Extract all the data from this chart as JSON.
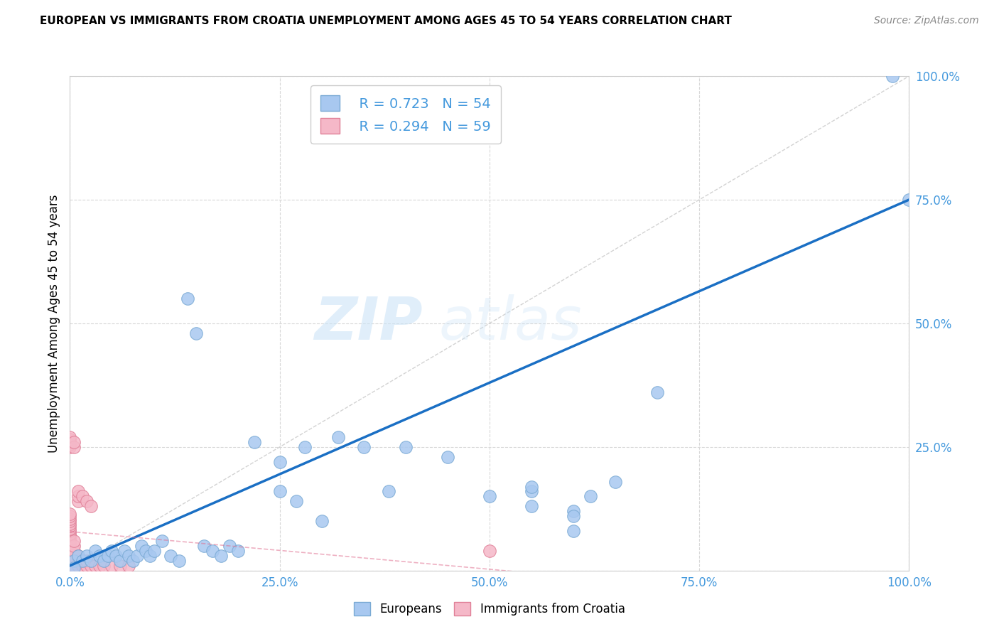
{
  "title": "EUROPEAN VS IMMIGRANTS FROM CROATIA UNEMPLOYMENT AMONG AGES 45 TO 54 YEARS CORRELATION CHART",
  "source": "Source: ZipAtlas.com",
  "ylabel": "Unemployment Among Ages 45 to 54 years",
  "xlim": [
    0,
    1.0
  ],
  "ylim": [
    0,
    1.0
  ],
  "xticks": [
    0.0,
    0.25,
    0.5,
    0.75,
    1.0
  ],
  "yticks": [
    0.0,
    0.25,
    0.5,
    0.75,
    1.0
  ],
  "xtick_labels": [
    "0.0%",
    "25.0%",
    "50.0%",
    "75.0%",
    "100.0%"
  ],
  "ytick_labels": [
    "0.0%",
    "25.0%",
    "50.0%",
    "75.0%",
    "100.0%"
  ],
  "european_color": "#a8c8f0",
  "european_edge": "#7aaad4",
  "immigrant_color": "#f5b8c8",
  "immigrant_edge": "#e08098",
  "regression_blue_color": "#1a6fc4",
  "regression_pink_color": "#e07090",
  "diagonal_color": "#c8c8c8",
  "watermark_zip": "ZIP",
  "watermark_atlas": "atlas",
  "legend_R_european": "R = 0.723",
  "legend_N_european": "N = 54",
  "legend_R_immigrant": "R = 0.294",
  "legend_N_immigrant": "N = 59",
  "european_x": [
    0.005,
    0.01,
    0.015,
    0.02,
    0.025,
    0.03,
    0.035,
    0.04,
    0.045,
    0.05,
    0.055,
    0.06,
    0.065,
    0.07,
    0.075,
    0.08,
    0.085,
    0.09,
    0.095,
    0.1,
    0.11,
    0.12,
    0.13,
    0.14,
    0.15,
    0.16,
    0.17,
    0.18,
    0.19,
    0.2,
    0.22,
    0.25,
    0.28,
    0.3,
    0.32,
    0.35,
    0.38,
    0.4,
    0.45,
    0.5,
    0.55,
    0.6,
    0.65,
    0.7,
    1.0,
    0.25,
    0.27,
    0.55,
    0.6,
    0.62,
    0.55,
    0.6,
    0.98,
    0.005
  ],
  "european_y": [
    0.02,
    0.03,
    0.02,
    0.03,
    0.02,
    0.04,
    0.03,
    0.02,
    0.03,
    0.04,
    0.03,
    0.02,
    0.04,
    0.03,
    0.02,
    0.03,
    0.05,
    0.04,
    0.03,
    0.04,
    0.06,
    0.03,
    0.02,
    0.55,
    0.48,
    0.05,
    0.04,
    0.03,
    0.05,
    0.04,
    0.26,
    0.22,
    0.25,
    0.1,
    0.27,
    0.25,
    0.16,
    0.25,
    0.23,
    0.15,
    0.16,
    0.12,
    0.18,
    0.36,
    0.75,
    0.16,
    0.14,
    0.17,
    0.08,
    0.15,
    0.13,
    0.11,
    1.0,
    0.005
  ],
  "immigrant_x": [
    0.0,
    0.0,
    0.0,
    0.0,
    0.0,
    0.0,
    0.0,
    0.0,
    0.0,
    0.0,
    0.0,
    0.0,
    0.0,
    0.0,
    0.0,
    0.0,
    0.0,
    0.0,
    0.0,
    0.0,
    0.0,
    0.0,
    0.0,
    0.0,
    0.0,
    0.0,
    0.0,
    0.0,
    0.0,
    0.0,
    0.005,
    0.005,
    0.005,
    0.005,
    0.005,
    0.005,
    0.005,
    0.005,
    0.01,
    0.01,
    0.01,
    0.01,
    0.01,
    0.01,
    0.015,
    0.015,
    0.015,
    0.02,
    0.02,
    0.02,
    0.025,
    0.025,
    0.03,
    0.035,
    0.04,
    0.05,
    0.06,
    0.07,
    0.5
  ],
  "immigrant_y": [
    0.0,
    0.005,
    0.01,
    0.015,
    0.02,
    0.025,
    0.03,
    0.035,
    0.04,
    0.045,
    0.05,
    0.055,
    0.06,
    0.065,
    0.07,
    0.075,
    0.08,
    0.085,
    0.09,
    0.095,
    0.1,
    0.105,
    0.11,
    0.115,
    0.25,
    0.255,
    0.26,
    0.265,
    0.27,
    0.0,
    0.01,
    0.02,
    0.03,
    0.04,
    0.05,
    0.06,
    0.25,
    0.26,
    0.01,
    0.02,
    0.03,
    0.14,
    0.15,
    0.16,
    0.01,
    0.02,
    0.15,
    0.01,
    0.02,
    0.14,
    0.01,
    0.13,
    0.01,
    0.01,
    0.01,
    0.01,
    0.01,
    0.01,
    0.04
  ],
  "background_color": "#ffffff",
  "grid_color": "#d8d8d8",
  "tick_color": "#4499dd",
  "reg_line_x_start": 0.0,
  "reg_line_x_end": 1.0,
  "reg_line_y_start": 0.01,
  "reg_line_y_end": 0.75
}
